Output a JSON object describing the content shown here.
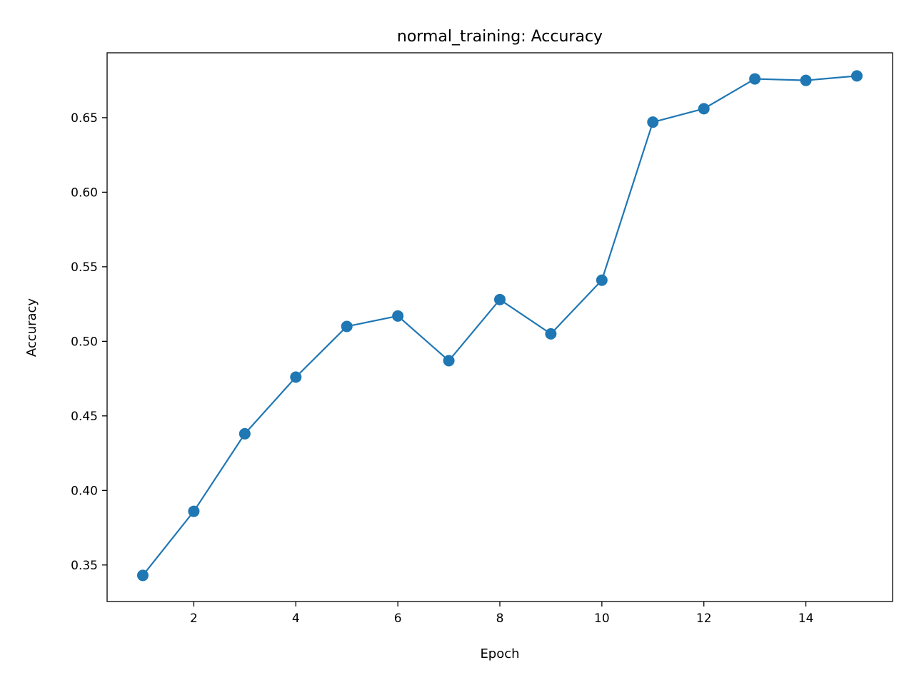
{
  "chart_data": {
    "type": "line",
    "title": "normal_training: Accuracy",
    "xlabel": "Epoch",
    "ylabel": "Accuracy",
    "xlim": [
      0.3,
      15.7
    ],
    "ylim": [
      0.3255,
      0.6935
    ],
    "xticks": [
      2,
      4,
      6,
      8,
      10,
      12,
      14
    ],
    "xtick_labels": [
      "2",
      "4",
      "6",
      "8",
      "10",
      "12",
      "14"
    ],
    "yticks": [
      0.35,
      0.4,
      0.45,
      0.5,
      0.55,
      0.6,
      0.65
    ],
    "ytick_labels": [
      "0.35",
      "0.40",
      "0.45",
      "0.50",
      "0.55",
      "0.60",
      "0.65"
    ],
    "grid": false,
    "legend": "none",
    "series": [
      {
        "color": "#1f77b4",
        "marker": "circle",
        "x": [
          1,
          2,
          3,
          4,
          5,
          6,
          7,
          8,
          9,
          10,
          11,
          12,
          13,
          14,
          15
        ],
        "y": [
          0.343,
          0.386,
          0.438,
          0.476,
          0.51,
          0.517,
          0.487,
          0.528,
          0.505,
          0.541,
          0.647,
          0.656,
          0.676,
          0.675,
          0.678
        ]
      }
    ]
  }
}
